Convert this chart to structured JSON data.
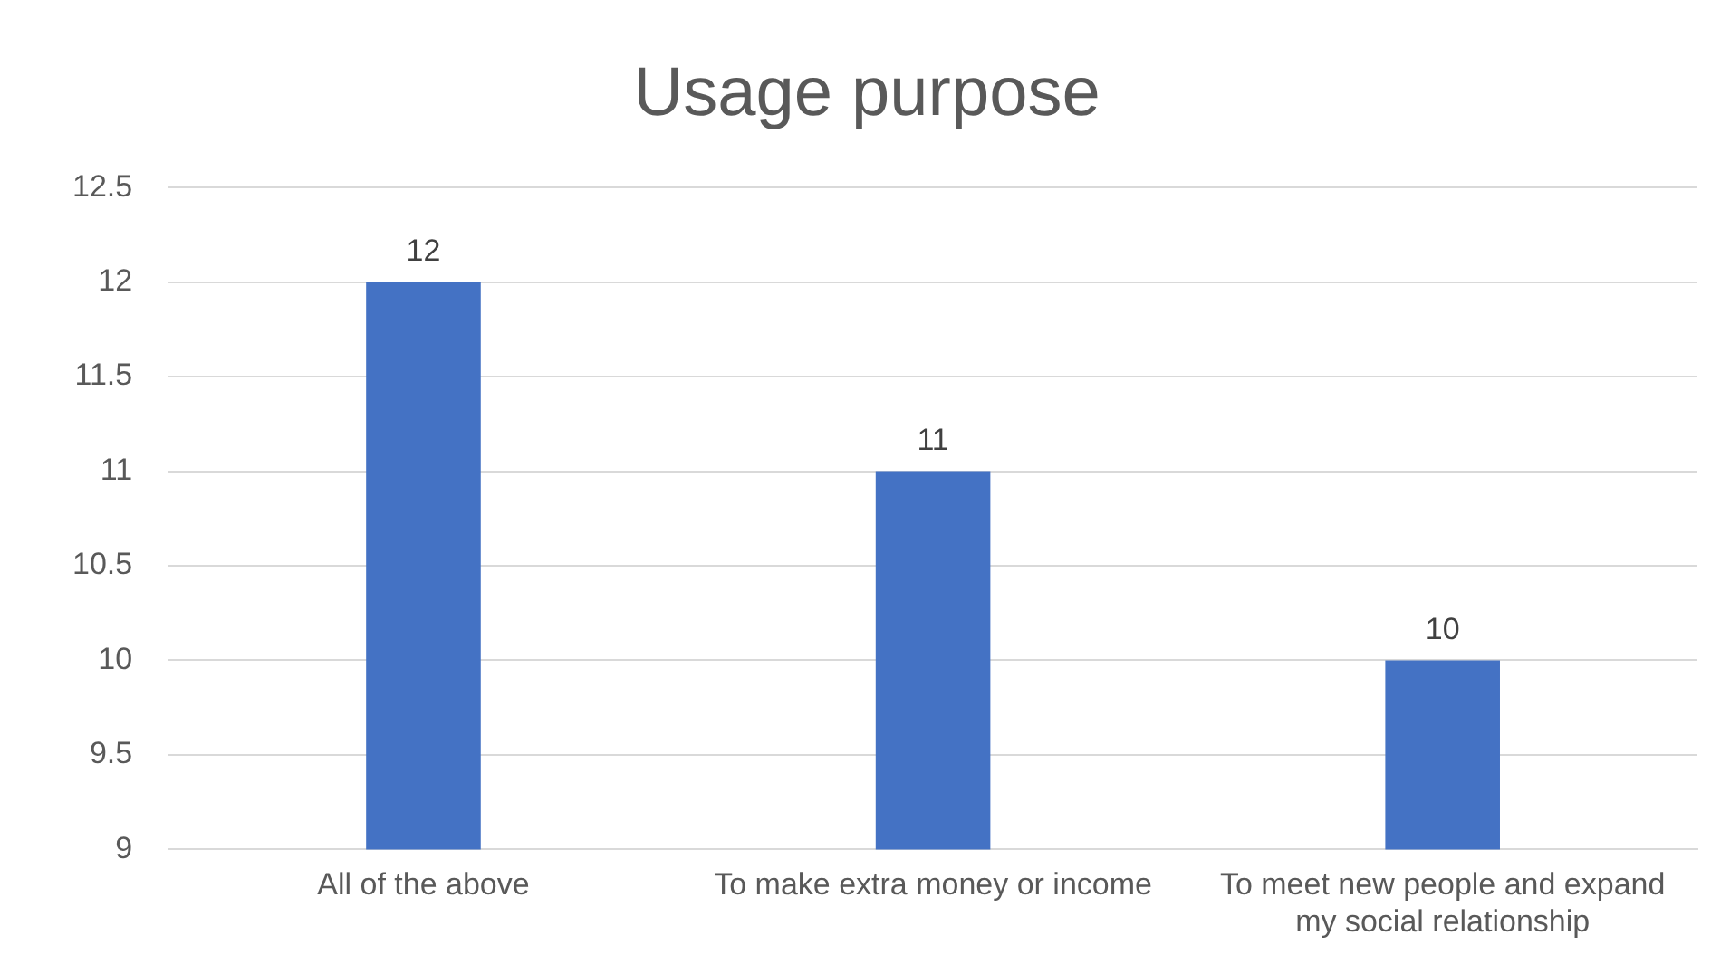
{
  "chart_data": {
    "type": "bar",
    "title": "Usage purpose",
    "categories": [
      "All of the above",
      "To make extra money or income",
      "To meet new people and expand my social relationship"
    ],
    "values": [
      12,
      11,
      10
    ],
    "color": "#4472c4",
    "ylim": [
      9,
      12.5
    ],
    "yticks": [
      9,
      9.5,
      10,
      10.5,
      11,
      11.5,
      12,
      12.5
    ],
    "grid": "y",
    "data_labels": true
  }
}
